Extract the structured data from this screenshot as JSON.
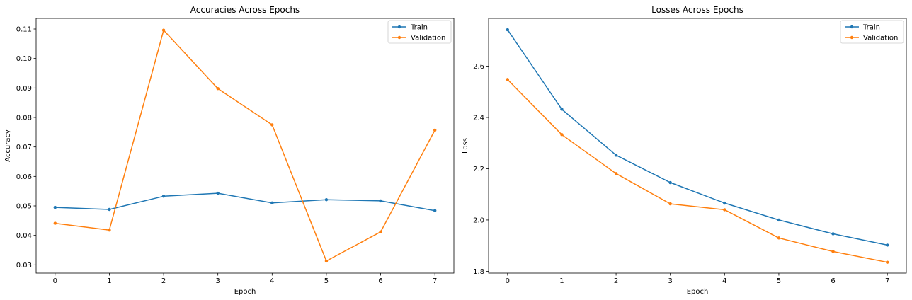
{
  "chart_data": [
    {
      "type": "line",
      "title": "Accuracies Across Epochs",
      "xlabel": "Epoch",
      "ylabel": "Accuracy",
      "x": [
        0,
        1,
        2,
        3,
        4,
        5,
        6,
        7
      ],
      "xticks": [
        "0",
        "1",
        "2",
        "3",
        "4",
        "5",
        "6",
        "7"
      ],
      "xlim": [
        -0.35,
        7.35
      ],
      "ylim": [
        0.0272,
        0.1136
      ],
      "yticks": [
        0.03,
        0.04,
        0.05,
        0.06,
        0.07,
        0.08,
        0.09,
        0.1,
        0.11
      ],
      "ytick_labels": [
        "0.03",
        "0.04",
        "0.05",
        "0.06",
        "0.07",
        "0.08",
        "0.09",
        "0.10",
        "0.11"
      ],
      "grid": false,
      "legend_position": "top-right",
      "series": [
        {
          "name": "Train",
          "color": "#1f77b4",
          "values": [
            0.0495,
            0.0488,
            0.0533,
            0.0543,
            0.051,
            0.0521,
            0.0517,
            0.0484
          ]
        },
        {
          "name": "Validation",
          "color": "#ff7f0e",
          "values": [
            0.0441,
            0.0418,
            0.1096,
            0.0898,
            0.0775,
            0.0313,
            0.0412,
            0.0757
          ]
        }
      ]
    },
    {
      "type": "line",
      "title": "Losses Across Epochs",
      "xlabel": "Epoch",
      "ylabel": "Loss",
      "x": [
        0,
        1,
        2,
        3,
        4,
        5,
        6,
        7
      ],
      "xticks": [
        "0",
        "1",
        "2",
        "3",
        "4",
        "5",
        "6",
        "7"
      ],
      "xlim": [
        -0.35,
        7.35
      ],
      "ylim": [
        1.7928,
        2.7864
      ],
      "yticks": [
        1.8,
        2.0,
        2.2,
        2.4,
        2.6
      ],
      "ytick_labels": [
        "1.8",
        "2.0",
        "2.2",
        "2.4",
        "2.6"
      ],
      "grid": false,
      "legend_position": "top-right",
      "series": [
        {
          "name": "Train",
          "color": "#1f77b4",
          "values": [
            2.742,
            2.432,
            2.253,
            2.146,
            2.066,
            2.0,
            1.946,
            1.902
          ]
        },
        {
          "name": "Validation",
          "color": "#ff7f0e",
          "values": [
            2.548,
            2.333,
            2.181,
            2.063,
            2.04,
            1.93,
            1.877,
            1.835
          ]
        }
      ]
    }
  ]
}
